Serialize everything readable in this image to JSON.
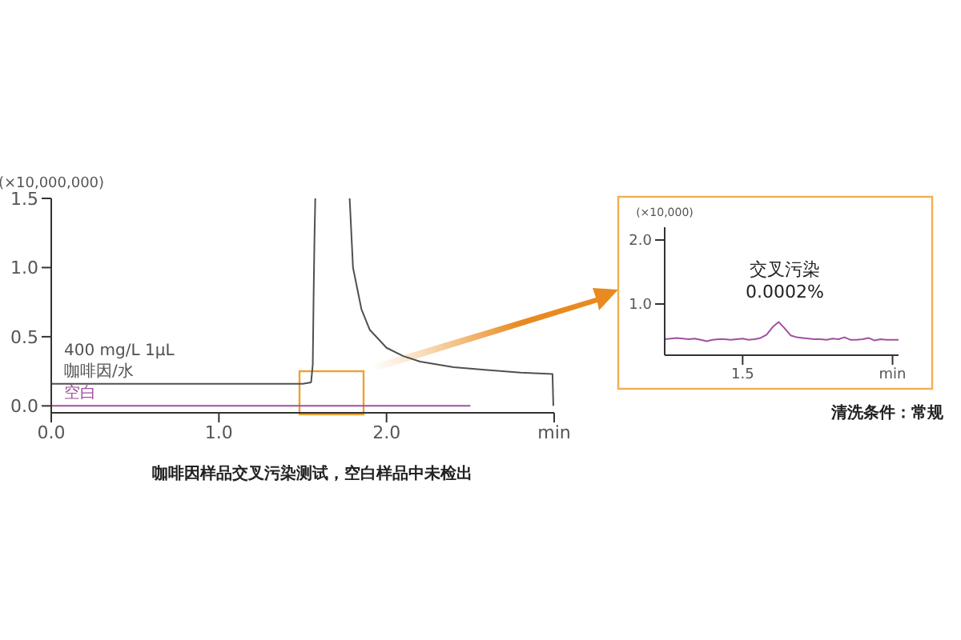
{
  "chart_data": [
    {
      "type": "line",
      "ylabel": "(×10,000,000)",
      "annotations": [
        "咖啡因样品交叉污染测试，空白样品中未检出"
      ],
      "xlim": [
        0,
        3.0
      ],
      "xticks": [
        {
          "value": 0,
          "label": "0.0"
        },
        {
          "value": 1,
          "label": "1.0"
        },
        {
          "value": 2,
          "label": "2.0"
        },
        {
          "value": 3,
          "label": "min"
        }
      ],
      "ylim": [
        -0.05,
        1.5
      ],
      "yticks": [
        {
          "value": 0,
          "label": "0.0"
        },
        0.5,
        {
          "value": 1,
          "label": "1.0"
        },
        1.5
      ],
      "grid": false,
      "legend": false,
      "marker": "none",
      "line_style": "solid",
      "series": [
        {
          "name": "400 mg/L 1μL\n咖啡因/水",
          "color": "#505050",
          "x": [
            0,
            0.5,
            1.0,
            1.5,
            1.55,
            1.56,
            1.565,
            1.57,
            1.575,
            1.7,
            1.78,
            1.8,
            1.85,
            1.9,
            2.0,
            2.1,
            2.2,
            2.4,
            2.6,
            2.8,
            2.99,
            2.995
          ],
          "values": [
            0.16,
            0.16,
            0.16,
            0.16,
            0.17,
            0.3,
            0.8,
            1.2,
            1.5,
            null,
            1.5,
            1.0,
            0.7,
            0.55,
            0.42,
            0.36,
            0.32,
            0.28,
            0.26,
            0.24,
            0.23,
            0.0
          ]
        },
        {
          "name": "空白",
          "color": "#a050a0",
          "x": [
            0,
            1.0,
            2.0,
            2.5
          ],
          "values": [
            0.0,
            0.0,
            0.0,
            0.0
          ]
        }
      ]
    },
    {
      "type": "line",
      "ylabel": "(×10,000)",
      "annotations": [
        "交叉污染\n0.0002%",
        "清洗条件：常规"
      ],
      "categories": [
        null,
        null,
        null,
        null,
        null,
        null,
        null,
        null,
        null,
        null,
        null,
        null,
        null,
        "1.5",
        null,
        null,
        null,
        null,
        null,
        null,
        null,
        null,
        null,
        null,
        null,
        null,
        null,
        null,
        null,
        null,
        null,
        null,
        null,
        null,
        null,
        null,
        null,
        null,
        "min",
        null
      ],
      "ylim": [
        0.2,
        2.2
      ],
      "yticks": [
        {
          "value": 1,
          "label": "1.0"
        },
        {
          "value": 2,
          "label": "2.0"
        }
      ],
      "grid": false,
      "legend": false,
      "marker": "none",
      "line_style": "solid",
      "series": [
        {
          "color": "#a050a0",
          "values": [
            0.45,
            0.46,
            0.47,
            0.46,
            0.45,
            0.46,
            0.44,
            0.42,
            0.44,
            0.45,
            0.45,
            0.44,
            0.45,
            0.46,
            0.44,
            0.45,
            0.47,
            0.52,
            0.64,
            0.72,
            0.62,
            0.51,
            0.48,
            0.47,
            0.46,
            0.45,
            0.45,
            0.44,
            0.46,
            0.45,
            0.48,
            0.44,
            0.44,
            0.45,
            0.47,
            0.43,
            0.45,
            0.44,
            0.44,
            0.44
          ]
        }
      ]
    }
  ]
}
